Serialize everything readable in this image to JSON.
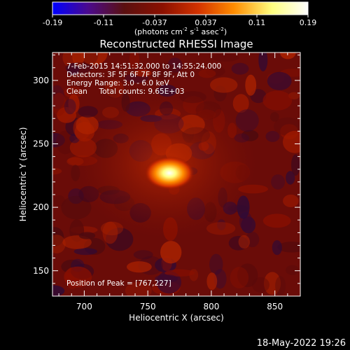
{
  "chart_data": {
    "type": "heatmap",
    "title": "Reconstructed RHESSI Image",
    "xlabel": "Heliocentric X (arcsec)",
    "ylabel": "Heliocentric Y (arcsec)",
    "xlim": [
      675,
      870
    ],
    "ylim": [
      130,
      322
    ],
    "x_ticks": [
      700,
      750,
      800,
      850
    ],
    "y_ticks": [
      150,
      200,
      250,
      300
    ],
    "colorbar": {
      "min": -0.19,
      "max": 0.19,
      "tick_labels": [
        "-0.19",
        "-0.11",
        "-0.037",
        "0.037",
        "0.11",
        "0.19"
      ],
      "label_main": "(photons cm",
      "label_sup1": "-2",
      "label_mid1": " s",
      "label_sup2": "-1",
      "label_mid2": " asec",
      "label_sup3": "-2",
      "label_end": ")",
      "colors": [
        "#0000ff",
        "#4b0a8c",
        "#5a1010",
        "#8b1000",
        "#d23200",
        "#ff8c00",
        "#ffff80",
        "#ffffff"
      ]
    },
    "peak": {
      "x": 767,
      "y": 227,
      "value": 0.19
    },
    "annotations": [
      "7-Feb-2015 14:51:32.000 to 14:55:24.000",
      "Detectors: 3F 5F 6F 7F 8F 9F, Att 0",
      "Energy Range: 3.0 - 6.0 keV",
      "Clean     Total counts: 9.65E+03",
      "Position of Peak = [767,227]"
    ],
    "footer_timestamp": "18-May-2022 19:26"
  }
}
